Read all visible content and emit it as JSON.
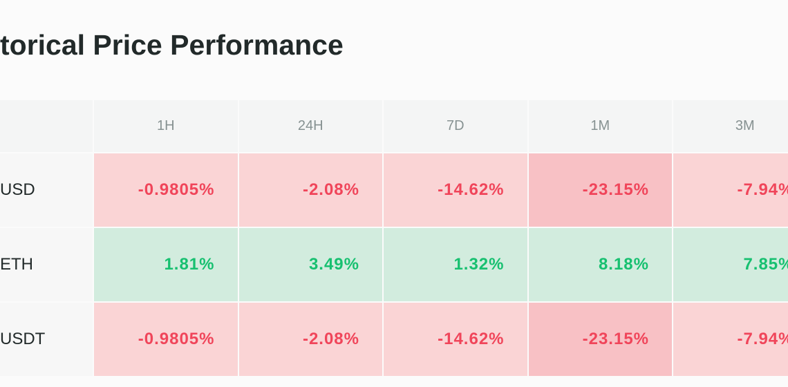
{
  "header": {
    "title": "torical Price Performance"
  },
  "table": {
    "columns": [
      "1H",
      "24H",
      "7D",
      "1M",
      "3M"
    ],
    "rows": [
      {
        "name": "USD",
        "values": [
          "-0.9805%",
          "-2.08%",
          "-14.62%",
          "-23.15%",
          "-7.94%"
        ]
      },
      {
        "name": "ETH",
        "values": [
          "1.81%",
          "3.49%",
          "1.32%",
          "8.18%",
          "7.85%"
        ]
      },
      {
        "name": "USDT",
        "values": [
          "-0.9805%",
          "-2.08%",
          "-14.62%",
          "-23.15%",
          "-7.94%"
        ]
      }
    ]
  }
}
